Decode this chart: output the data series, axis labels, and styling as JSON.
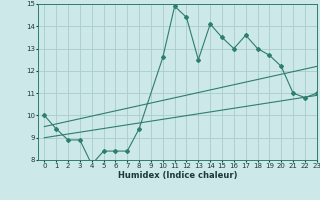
{
  "title": "",
  "xlabel": "Humidex (Indice chaleur)",
  "x_values": [
    0,
    1,
    2,
    3,
    4,
    5,
    6,
    7,
    8,
    9,
    10,
    11,
    12,
    13,
    14,
    15,
    16,
    17,
    18,
    19,
    20,
    21,
    22,
    23
  ],
  "line1_y": [
    10.0,
    9.4,
    8.9,
    8.9,
    7.8,
    8.4,
    8.4,
    8.4,
    9.4,
    null,
    12.6,
    14.9,
    14.4,
    12.5,
    14.1,
    13.5,
    13.0,
    13.6,
    13.0,
    12.7,
    12.2,
    11.0,
    10.8,
    11.0
  ],
  "trend1_x": [
    0,
    23
  ],
  "trend1_y": [
    9.5,
    12.2
  ],
  "trend2_x": [
    0,
    23
  ],
  "trend2_y": [
    9.0,
    10.9
  ],
  "color": "#2e7d6e",
  "bg_color": "#cce8e8",
  "grid_color": "#aacccc",
  "ylim": [
    8,
    15
  ],
  "xlim": [
    -0.5,
    23
  ],
  "yticks": [
    8,
    9,
    10,
    11,
    12,
    13,
    14,
    15
  ],
  "xticks": [
    0,
    1,
    2,
    3,
    4,
    5,
    6,
    7,
    8,
    9,
    10,
    11,
    12,
    13,
    14,
    15,
    16,
    17,
    18,
    19,
    20,
    21,
    22,
    23
  ],
  "xlabel_fontsize": 6.0,
  "tick_fontsize": 5.0
}
